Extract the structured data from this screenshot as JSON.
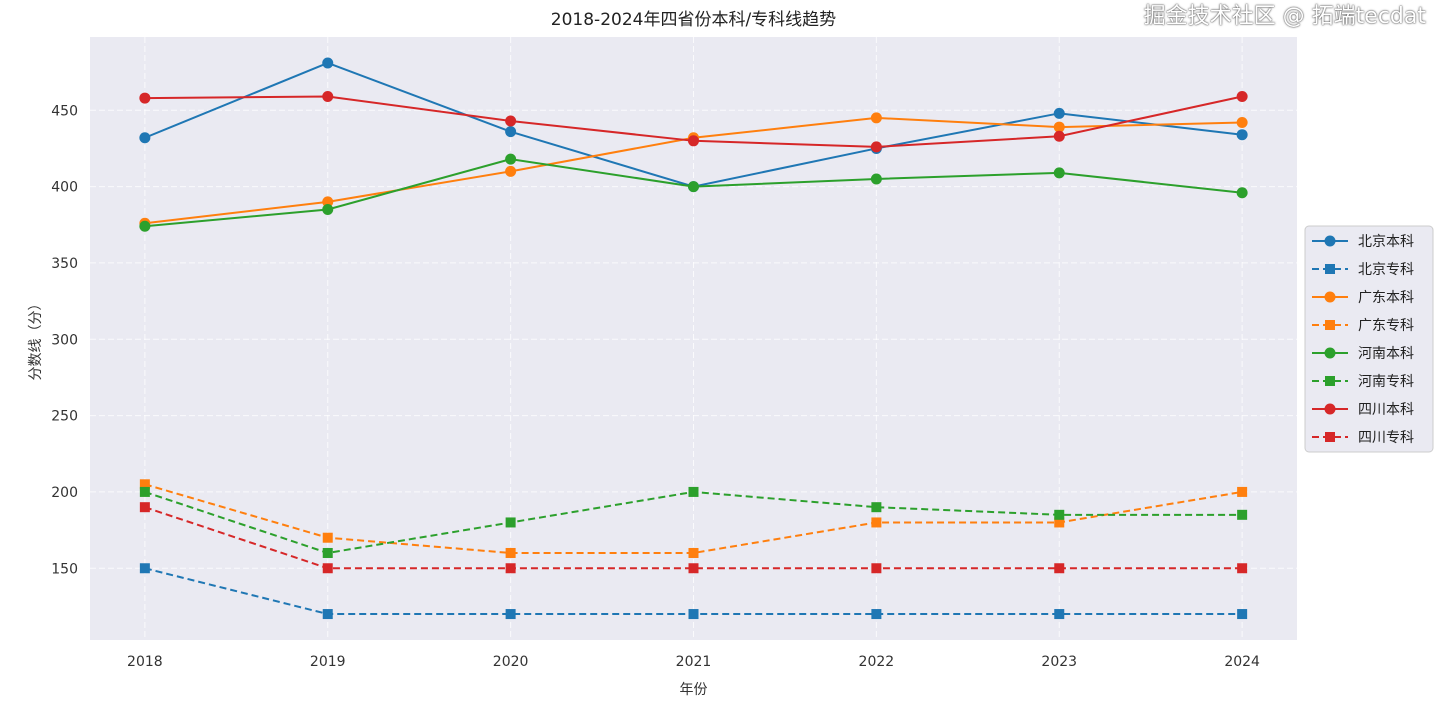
{
  "chart_data": {
    "type": "line",
    "title": "2018-2024年四省份本科/专科线趋势",
    "xlabel": "年份",
    "ylabel": "分数线（分）",
    "x": [
      2018,
      2019,
      2020,
      2021,
      2022,
      2023,
      2024
    ],
    "x_tick_labels": [
      "2018",
      "2019",
      "2020",
      "2021",
      "2022",
      "2023",
      "2024"
    ],
    "y_ticks": [
      150,
      200,
      250,
      300,
      350,
      400,
      450
    ],
    "y_tick_labels": [
      "150",
      "200",
      "250",
      "300",
      "350",
      "400",
      "450"
    ],
    "ylim": [
      103,
      498
    ],
    "xlim": [
      2017.7,
      2024.3
    ],
    "grid": true,
    "legend_position": "right-outside",
    "series": [
      {
        "name": "北京本科",
        "color": "#1f77b4",
        "style": "solid",
        "marker": "circle",
        "values": [
          432,
          481,
          436,
          400,
          425,
          448,
          434
        ]
      },
      {
        "name": "北京专科",
        "color": "#1f77b4",
        "style": "dashed",
        "marker": "square",
        "values": [
          150,
          120,
          120,
          120,
          120,
          120,
          120
        ]
      },
      {
        "name": "广东本科",
        "color": "#ff7f0e",
        "style": "solid",
        "marker": "circle",
        "values": [
          376,
          390,
          410,
          432,
          445,
          439,
          442
        ]
      },
      {
        "name": "广东专科",
        "color": "#ff7f0e",
        "style": "dashed",
        "marker": "square",
        "values": [
          205,
          170,
          160,
          160,
          180,
          180,
          200
        ]
      },
      {
        "name": "河南本科",
        "color": "#2ca02c",
        "style": "solid",
        "marker": "circle",
        "values": [
          374,
          385,
          418,
          400,
          405,
          409,
          396
        ]
      },
      {
        "name": "河南专科",
        "color": "#2ca02c",
        "style": "dashed",
        "marker": "square",
        "values": [
          200,
          160,
          180,
          200,
          190,
          185,
          185
        ]
      },
      {
        "name": "四川本科",
        "color": "#d62728",
        "style": "solid",
        "marker": "circle",
        "values": [
          458,
          459,
          443,
          430,
          426,
          433,
          459
        ]
      },
      {
        "name": "四川专科",
        "color": "#d62728",
        "style": "dashed",
        "marker": "square",
        "values": [
          190,
          150,
          150,
          150,
          150,
          150,
          150
        ]
      }
    ]
  },
  "watermark": "掘金技术社区 @ 拓端tecdat"
}
